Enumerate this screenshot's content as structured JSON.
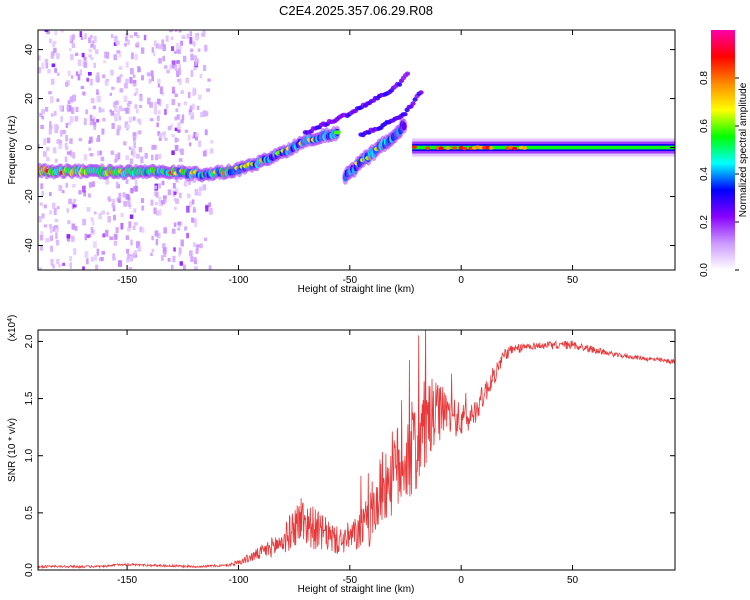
{
  "title": "C2E4.2025.357.06.29.R08",
  "chart_data": [
    {
      "type": "heatmap",
      "name": "spectrogram",
      "xlabel": "Height of straight line (km)",
      "ylabel": "Frequency (Hz)",
      "xlim": [
        -190,
        96
      ],
      "ylim": [
        -50,
        48
      ],
      "xticks": [
        -150,
        -100,
        -50,
        0,
        50
      ],
      "yticks": [
        -40,
        -20,
        0,
        20,
        40
      ],
      "xtick_labels": [
        "-150",
        "-100",
        "-50",
        "0",
        "50"
      ],
      "ytick_labels": [
        "-40",
        "-20",
        "0",
        "20",
        "40"
      ],
      "colorbar": {
        "label": "Normalized spectral amplitude",
        "range": [
          0,
          1
        ],
        "ticks": [
          0.0,
          0.2,
          0.4,
          0.6,
          0.8
        ],
        "tick_labels": [
          "0.0",
          "0.2",
          "0.4",
          "0.6",
          "0.8"
        ],
        "colormap": [
          "#ffffff",
          "#cc99ff",
          "#8800ff",
          "#0000ff",
          "#00ffff",
          "#00ff00",
          "#ffff00",
          "#ff8800",
          "#ff0000",
          "#ff00aa"
        ]
      },
      "main_track": [
        {
          "x": -190,
          "y": -9.5,
          "amp": 0.62
        },
        {
          "x": -170,
          "y": -9.8,
          "amp": 0.55
        },
        {
          "x": -150,
          "y": -10.0,
          "amp": 0.5
        },
        {
          "x": -130,
          "y": -10.0,
          "amp": 0.48
        },
        {
          "x": -115,
          "y": -11.0,
          "amp": 0.45
        },
        {
          "x": -100,
          "y": -9.0,
          "amp": 0.45
        },
        {
          "x": -90,
          "y": -6.0,
          "amp": 0.4
        },
        {
          "x": -80,
          "y": -2.0,
          "amp": 0.35
        },
        {
          "x": -70,
          "y": 3.0,
          "amp": 0.38
        },
        {
          "x": -55,
          "y": 6.0,
          "amp": 0.35
        }
      ],
      "secondary_track": [
        {
          "x": -52,
          "y": -12.0,
          "amp": 0.35
        },
        {
          "x": -45,
          "y": -6.0,
          "amp": 0.38
        },
        {
          "x": -38,
          "y": -1.0,
          "amp": 0.4
        },
        {
          "x": -30,
          "y": 5.0,
          "amp": 0.38
        },
        {
          "x": -25,
          "y": 10.0,
          "amp": 0.3
        }
      ],
      "harmonic_tracks": [
        [
          {
            "x": -70,
            "y": 6.0
          },
          {
            "x": -60,
            "y": 10.0
          },
          {
            "x": -50,
            "y": 14.0
          },
          {
            "x": -40,
            "y": 19.0
          },
          {
            "x": -30,
            "y": 24.0
          },
          {
            "x": -24,
            "y": 30.0
          }
        ],
        [
          {
            "x": -45,
            "y": 5.0
          },
          {
            "x": -35,
            "y": 9.0
          },
          {
            "x": -25,
            "y": 14.0
          },
          {
            "x": -18,
            "y": 23.0
          }
        ]
      ],
      "flat_track": {
        "x_start": -22,
        "x_end": 96,
        "y": 0.0,
        "amp_core": 0.55,
        "amp_peak": 0.9
      },
      "noise_columns_x": [
        -183,
        -175,
        -165,
        -155,
        -150,
        -145,
        -135,
        -128,
        -120
      ],
      "noise_xlim": [
        -190,
        -112
      ]
    },
    {
      "type": "line",
      "name": "snr",
      "xlabel": "Height of straight line (km)",
      "ylabel": "SNR (10 * v/v)",
      "multiplier_label": "(x10",
      "multiplier_exp": "4",
      "multiplier_close": ")",
      "xlim": [
        -190,
        96
      ],
      "ylim": [
        0,
        2.1
      ],
      "xticks": [
        -150,
        -100,
        -50,
        0,
        50
      ],
      "yticks": [
        0.0,
        0.5,
        1.0,
        1.5,
        2.0
      ],
      "xtick_labels": [
        "-150",
        "-100",
        "-50",
        "0",
        "50"
      ],
      "ytick_labels": [
        "0.0",
        "0.5",
        "1.0",
        "1.5",
        "2.0"
      ],
      "color": "#e8383a",
      "envelope": [
        {
          "x": -190,
          "y": 0.03,
          "noise": 0.01
        },
        {
          "x": -160,
          "y": 0.03,
          "noise": 0.01
        },
        {
          "x": -153,
          "y": 0.05,
          "noise": 0.01
        },
        {
          "x": -120,
          "y": 0.03,
          "noise": 0.01
        },
        {
          "x": -105,
          "y": 0.04,
          "noise": 0.01
        },
        {
          "x": -98,
          "y": 0.08,
          "noise": 0.03
        },
        {
          "x": -90,
          "y": 0.15,
          "noise": 0.06
        },
        {
          "x": -80,
          "y": 0.25,
          "noise": 0.12
        },
        {
          "x": -72,
          "y": 0.45,
          "noise": 0.22
        },
        {
          "x": -65,
          "y": 0.35,
          "noise": 0.18
        },
        {
          "x": -55,
          "y": 0.25,
          "noise": 0.12
        },
        {
          "x": -48,
          "y": 0.3,
          "noise": 0.15
        },
        {
          "x": -40,
          "y": 0.45,
          "noise": 0.25
        },
        {
          "x": -35,
          "y": 0.75,
          "noise": 0.35
        },
        {
          "x": -28,
          "y": 0.9,
          "noise": 0.4
        },
        {
          "x": -20,
          "y": 1.1,
          "noise": 0.45
        },
        {
          "x": -15,
          "y": 1.3,
          "noise": 0.4
        },
        {
          "x": -8,
          "y": 1.4,
          "noise": 0.2
        },
        {
          "x": 0,
          "y": 1.3,
          "noise": 0.15
        },
        {
          "x": 5,
          "y": 1.35,
          "noise": 0.12
        },
        {
          "x": 12,
          "y": 1.6,
          "noise": 0.1
        },
        {
          "x": 20,
          "y": 1.9,
          "noise": 0.06
        },
        {
          "x": 30,
          "y": 1.96,
          "noise": 0.03
        },
        {
          "x": 50,
          "y": 1.97,
          "noise": 0.04
        },
        {
          "x": 70,
          "y": 1.88,
          "noise": 0.02
        },
        {
          "x": 96,
          "y": 1.82,
          "noise": 0.02
        }
      ]
    }
  ]
}
